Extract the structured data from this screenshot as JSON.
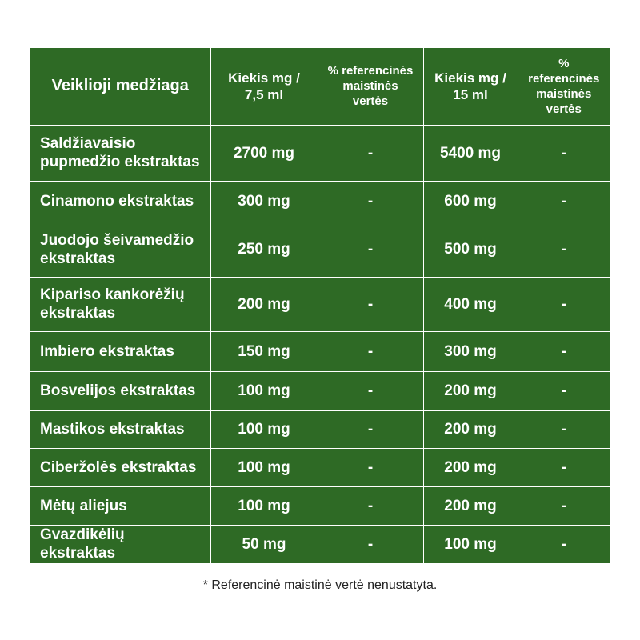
{
  "table": {
    "headers": {
      "name": "Veiklioji medžiaga",
      "amount1": [
        "Kiekis mg /",
        "7,5 ml"
      ],
      "pct1": [
        "% referencinės",
        "maistinės",
        "vertės"
      ],
      "amount2": [
        "Kiekis mg /",
        "15 ml"
      ],
      "pct2": [
        "% referencinės",
        "maistinės",
        "vertės"
      ]
    },
    "rows": [
      {
        "name": [
          "Saldžiavaisio",
          "pupmedžio ekstraktas"
        ],
        "amount1": "2700 mg",
        "pct1": "-",
        "amount2": "5400 mg",
        "pct2": "-"
      },
      {
        "name": [
          "Cinamono ekstraktas"
        ],
        "amount1": "300 mg",
        "pct1": "-",
        "amount2": "600 mg",
        "pct2": "-"
      },
      {
        "name": [
          "Juodojo šeivamedžio",
          "ekstraktas"
        ],
        "amount1": "250 mg",
        "pct1": "-",
        "amount2": "500 mg",
        "pct2": "-"
      },
      {
        "name": [
          "Kipariso kankorėžių",
          "ekstraktas"
        ],
        "amount1": "200 mg",
        "pct1": "-",
        "amount2": "400 mg",
        "pct2": "-"
      },
      {
        "name": [
          "Imbiero ekstraktas"
        ],
        "amount1": "150 mg",
        "pct1": "-",
        "amount2": "300 mg",
        "pct2": "-"
      },
      {
        "name": [
          "Bosvelijos ekstraktas"
        ],
        "amount1": "100 mg",
        "pct1": "-",
        "amount2": "200 mg",
        "pct2": "-"
      },
      {
        "name": [
          "Mastikos ekstraktas"
        ],
        "amount1": "100 mg",
        "pct1": "-",
        "amount2": "200 mg",
        "pct2": "-"
      },
      {
        "name": [
          "Ciberžolės ekstraktas"
        ],
        "amount1": "100 mg",
        "pct1": "-",
        "amount2": "200 mg",
        "pct2": "-"
      },
      {
        "name": [
          "Mėtų aliejus"
        ],
        "amount1": "100 mg",
        "pct1": "-",
        "amount2": "200 mg",
        "pct2": "-"
      },
      {
        "name": [
          "Gvazdikėlių ekstraktas"
        ],
        "amount1": "50 mg",
        "pct1": "-",
        "amount2": "100 mg",
        "pct2": "-"
      }
    ]
  },
  "footnote": "* Referencinė maistinė vertė nenustatyta.",
  "colors": {
    "table_bg": "#2e6a25",
    "grid_line": "#ffffff",
    "text_on_table": "#ffffff",
    "footnote_text": "#222222"
  }
}
